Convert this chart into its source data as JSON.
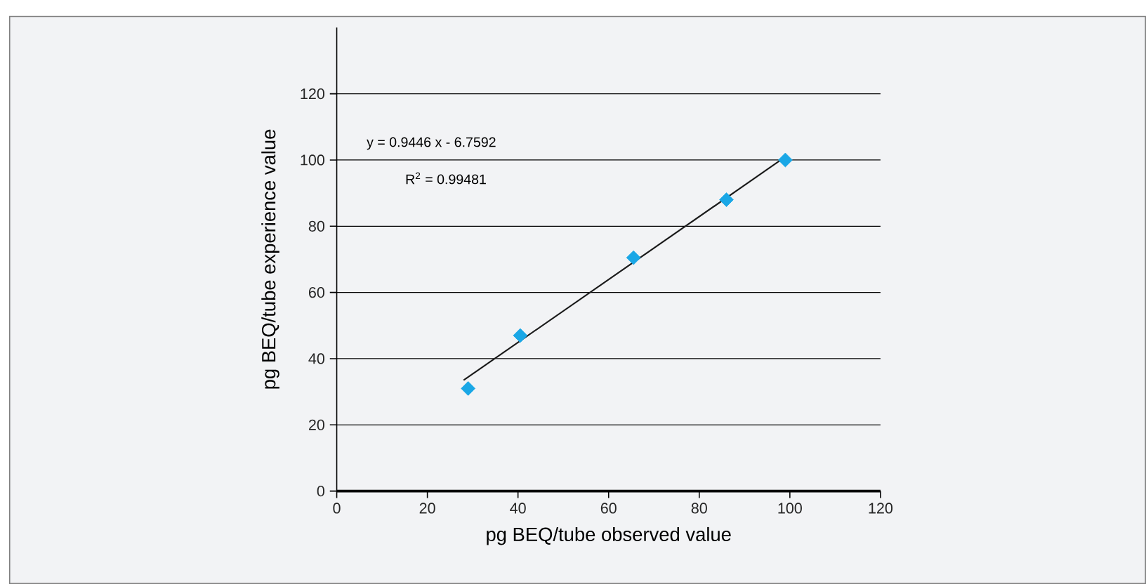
{
  "chart_data": {
    "type": "scatter",
    "xlabel": "pg BEQ/tube observed value",
    "ylabel": "pg BEQ/tube experience value",
    "annotations": [
      "y = 0.9446 x - 6.7592",
      "R$^{2}$ = 0.99481"
    ],
    "series": [
      {
        "color": "#1aa7e6",
        "marker": "diamond",
        "x": [
          29,
          40.5,
          65.5,
          86,
          99
        ],
        "values": [
          31,
          47,
          70.5,
          88,
          100
        ]
      },
      {
        "type": "line",
        "color": "#1a1a1a",
        "marker": "none",
        "line_style": "solid",
        "x": [
          28,
          98
        ],
        "values": [
          33.5,
          100
        ]
      }
    ],
    "xlim": [
      0,
      120
    ],
    "ylim": [
      0,
      140
    ],
    "xticks": [
      0,
      20,
      40,
      60,
      80,
      100,
      120
    ],
    "yticks": [
      0,
      20,
      40,
      60,
      80,
      100,
      120
    ],
    "grid": "y"
  }
}
